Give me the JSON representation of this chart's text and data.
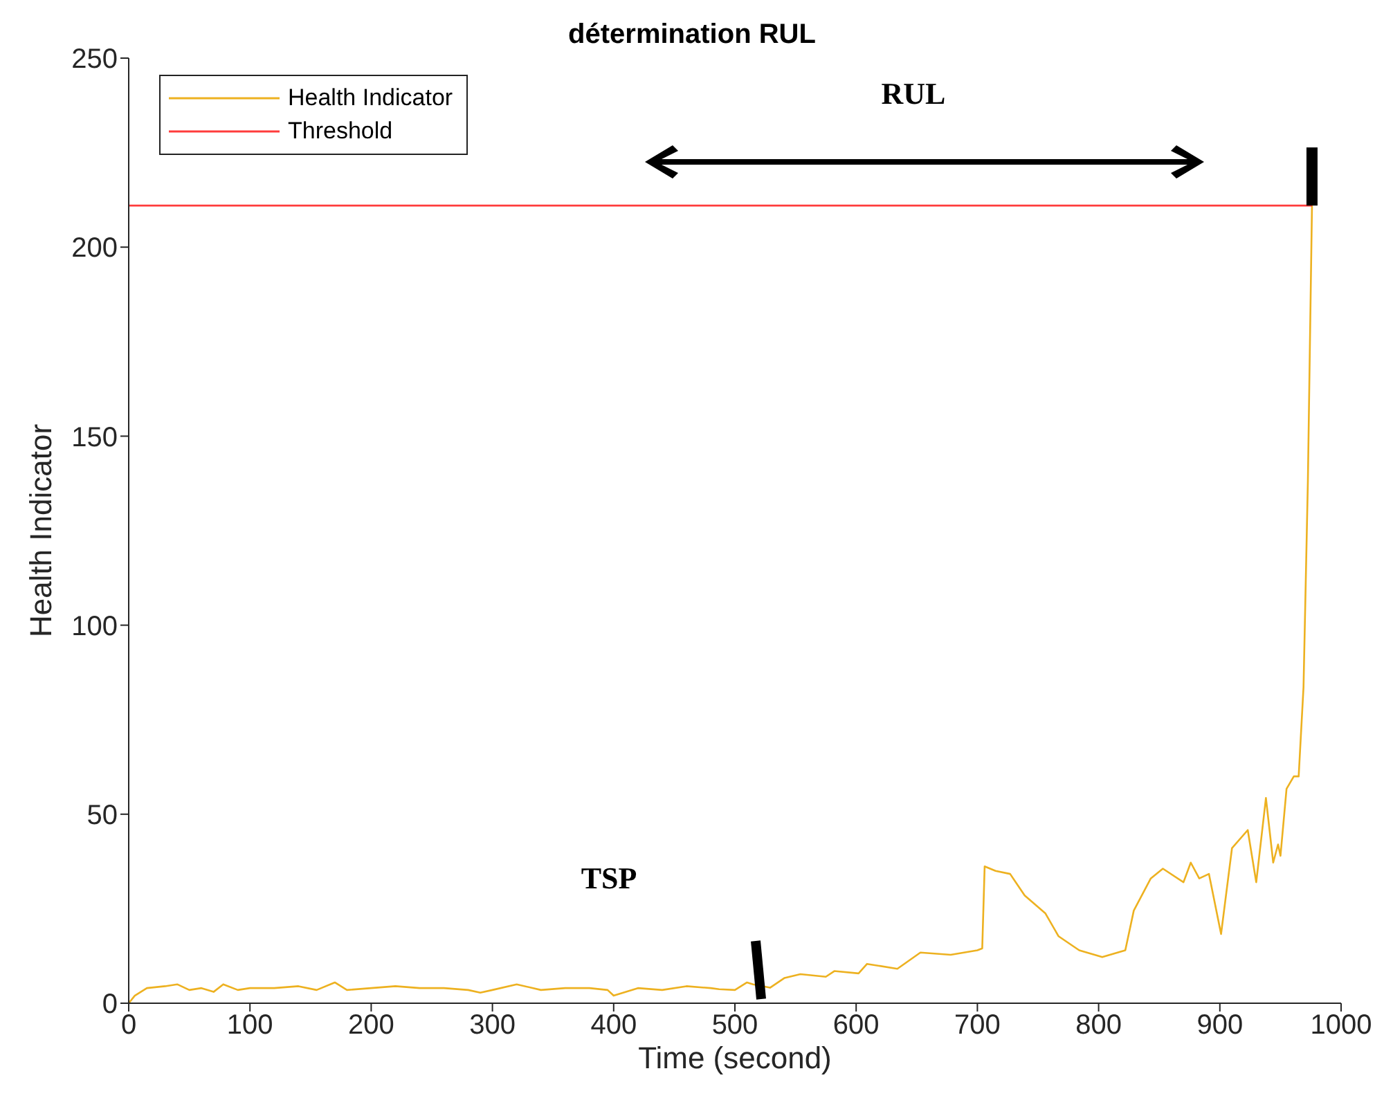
{
  "chart_data": {
    "type": "line",
    "title": "détermination RUL",
    "xlabel": "Time (second)",
    "ylabel": "Health Indicator",
    "xlim": [
      0,
      1000
    ],
    "xticks": [
      0,
      100,
      200,
      300,
      400,
      500,
      600,
      700,
      800,
      900,
      1000
    ],
    "ylim": [
      0,
      250
    ],
    "yticks": [
      0,
      50,
      100,
      150,
      200,
      250
    ],
    "legend": "top left",
    "marker": "none",
    "line_style": "solid",
    "series": [
      {
        "name": "Health Indicator",
        "color": "#edb120",
        "x": [
          0,
          5,
          15,
          30,
          40,
          50,
          60,
          70,
          78,
          90,
          100,
          120,
          140,
          155,
          170,
          180,
          200,
          220,
          240,
          260,
          280,
          290,
          300,
          320,
          340,
          360,
          380,
          395,
          400,
          420,
          440,
          460,
          480,
          487,
          500,
          510,
          515,
          529,
          541,
          554,
          575,
          582,
          602,
          609,
          634,
          653,
          678,
          700,
          704,
          706,
          715,
          727,
          739,
          756,
          767,
          784,
          803,
          822,
          829,
          843,
          853,
          870,
          876,
          883,
          891,
          901,
          910,
          923,
          930,
          938,
          944,
          948,
          950,
          955,
          961,
          965,
          969,
          972.6,
          976
        ],
        "values": [
          0,
          2,
          4,
          4.5,
          5,
          3.5,
          4,
          3,
          5,
          3.5,
          4,
          4,
          4.5,
          3.5,
          5.5,
          3.5,
          4,
          4.5,
          4,
          4,
          3.5,
          2.8,
          3.5,
          5,
          3.5,
          4,
          4,
          3.5,
          2,
          4,
          3.5,
          4.5,
          4,
          3.7,
          3.5,
          5.5,
          5,
          4.1,
          6.7,
          7.7,
          7,
          8.5,
          7.9,
          10.4,
          9.1,
          13.4,
          12.8,
          14,
          14.5,
          36.2,
          35,
          34.2,
          28.5,
          23.8,
          17.7,
          14,
          12.2,
          14,
          24.5,
          33,
          35.6,
          32,
          37.2,
          33,
          34.2,
          18.3,
          41,
          45.8,
          32,
          54.3,
          37.2,
          42,
          39,
          56.7,
          60,
          60,
          83.6,
          138,
          211
        ]
      },
      {
        "name": "Threshold",
        "color": "#ff3b3b",
        "x": [
          0,
          976
        ],
        "values": [
          211,
          211
        ]
      }
    ],
    "annotations": [
      "RUL",
      "TSP"
    ]
  }
}
